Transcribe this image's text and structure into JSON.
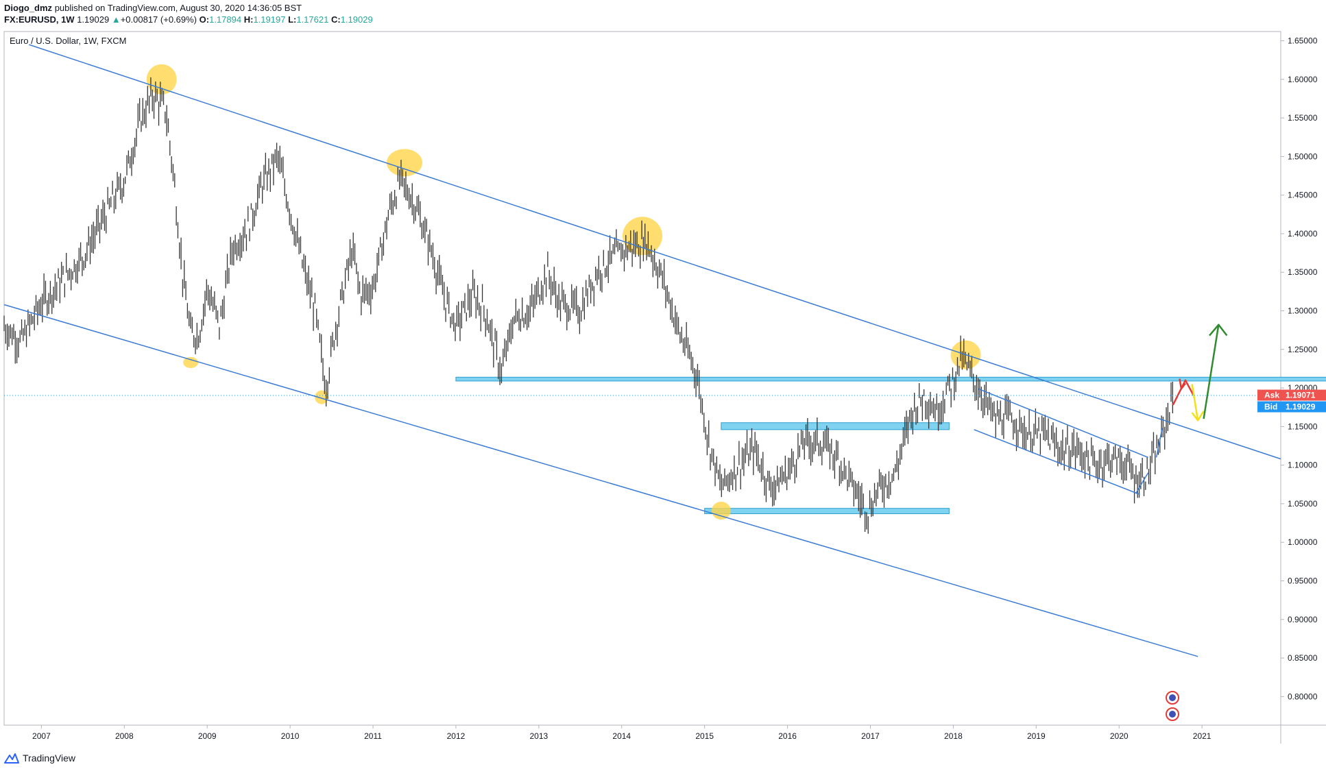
{
  "header": {
    "author": "Diogo_dmz",
    "published_text": "published on TradingView.com, August 30, 2020 14:36:05 BST",
    "symbol": "FX:EURUSD,",
    "interval": "1W",
    "last": "1.19029",
    "change_arrow": "▲",
    "change": "+0.00817 (+0.69%)",
    "o_label": "O:",
    "o_value": "1.17894",
    "h_label": "H:",
    "h_value": "1.19197",
    "l_label": "L:",
    "l_value": "1.17621",
    "c_label": "C:",
    "c_value": "1.19029"
  },
  "footer": {
    "brand": "TradingView",
    "logo_icon": "tradingview-logo-icon"
  },
  "colors": {
    "channel": "#3a7bd5",
    "zone_fill": "#7fd3f0",
    "zone_stroke": "#2a9fd0",
    "highlight": "#ffd54a",
    "candle": "#333333",
    "ask": "#ef5350",
    "bid": "#2196f3",
    "arrow_up": "#2e8b2e",
    "arrow_red": "#e53935",
    "arrow_yellow": "#f2e01a"
  },
  "chart_data": {
    "type": "line",
    "title": "Euro / U.S. Dollar, 1W, FXCM",
    "x_ticks": [
      "2007",
      "2008",
      "2009",
      "2010",
      "2011",
      "2012",
      "2013",
      "2014",
      "2015",
      "2016",
      "2017",
      "2018",
      "2019",
      "2020",
      "2021"
    ],
    "y_ticks": [
      "1.65000",
      "1.60000",
      "1.55000",
      "1.50000",
      "1.45000",
      "1.40000",
      "1.35000",
      "1.30000",
      "1.25000",
      "1.20000",
      "1.15000",
      "1.10000",
      "1.05000",
      "1.00000",
      "0.95000",
      "0.90000",
      "0.85000",
      "0.80000"
    ],
    "xlim": [
      2006.55,
      2021.95
    ],
    "ylim": [
      0.763,
      1.662
    ],
    "ask": {
      "label": "Ask",
      "value": "1.19071"
    },
    "bid": {
      "label": "Bid",
      "value": "1.19029"
    },
    "series": [
      {
        "x": [
          2006.55,
          2006.75,
          2007.0,
          2007.25,
          2007.5,
          2007.75,
          2008.0,
          2008.2,
          2008.35,
          2008.5,
          2008.6,
          2008.7,
          2008.8,
          2008.9,
          2009.0,
          2009.15,
          2009.3,
          2009.5,
          2009.65,
          2009.85,
          2010.0,
          2010.15,
          2010.3,
          2010.43,
          2010.55,
          2010.75,
          2010.85,
          2011.0,
          2011.2,
          2011.33,
          2011.5,
          2011.7,
          2011.85,
          2012.0,
          2012.2,
          2012.35,
          2012.55,
          2012.7,
          2012.9,
          2013.1,
          2013.25,
          2013.5,
          2013.7,
          2013.9,
          2014.05,
          2014.3,
          2014.5,
          2014.7,
          2014.9,
          2015.05,
          2015.2,
          2015.4,
          2015.6,
          2015.8,
          2016.0,
          2016.2,
          2016.4,
          2016.6,
          2016.8,
          2016.97,
          2017.1,
          2017.3,
          2017.5,
          2017.65,
          2017.8,
          2018.0,
          2018.1,
          2018.3,
          2018.5,
          2018.7,
          2018.9,
          2019.1,
          2019.3,
          2019.5,
          2019.7,
          2019.9,
          2020.1,
          2020.2,
          2020.35,
          2020.5,
          2020.65
        ],
        "values": [
          1.28,
          1.26,
          1.31,
          1.34,
          1.37,
          1.42,
          1.47,
          1.55,
          1.58,
          1.56,
          1.47,
          1.35,
          1.27,
          1.27,
          1.33,
          1.28,
          1.38,
          1.41,
          1.46,
          1.5,
          1.43,
          1.36,
          1.3,
          1.2,
          1.28,
          1.38,
          1.32,
          1.33,
          1.43,
          1.47,
          1.44,
          1.38,
          1.32,
          1.28,
          1.32,
          1.3,
          1.22,
          1.29,
          1.3,
          1.35,
          1.31,
          1.3,
          1.35,
          1.37,
          1.38,
          1.39,
          1.34,
          1.27,
          1.22,
          1.13,
          1.07,
          1.1,
          1.12,
          1.07,
          1.09,
          1.13,
          1.13,
          1.11,
          1.07,
          1.04,
          1.07,
          1.09,
          1.17,
          1.19,
          1.17,
          1.21,
          1.24,
          1.2,
          1.16,
          1.16,
          1.14,
          1.14,
          1.12,
          1.12,
          1.1,
          1.11,
          1.1,
          1.08,
          1.09,
          1.13,
          1.19
        ]
      }
    ]
  }
}
